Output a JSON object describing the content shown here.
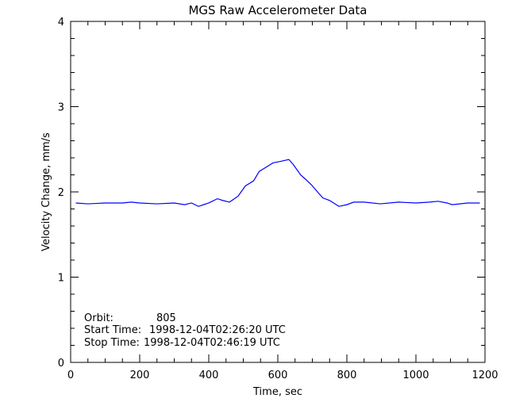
{
  "chart_data": {
    "type": "line",
    "title": "MGS Raw Accelerometer Data",
    "xlabel": "Time, sec",
    "ylabel": "Velocity Change, mm/s",
    "xlim": [
      0,
      1200
    ],
    "ylim": [
      0,
      4
    ],
    "xticks": [
      "0",
      "200",
      "400",
      "600",
      "800",
      "1000",
      "1200"
    ],
    "yticks": [
      "0",
      "1",
      "2",
      "3",
      "4"
    ],
    "grid": false,
    "line_color": "#0000ff",
    "series": [
      {
        "x": [
          15,
          50,
          100,
          150,
          175,
          200,
          250,
          300,
          330,
          350,
          370,
          400,
          425,
          440,
          460,
          485,
          506,
          530,
          546,
          566,
          586,
          610,
          632,
          645,
          666,
          680,
          698,
          715,
          730,
          750,
          777,
          800,
          820,
          850,
          897,
          950,
          1000,
          1040,
          1064,
          1090,
          1105,
          1150,
          1185
        ],
        "y": [
          1.87,
          1.86,
          1.87,
          1.87,
          1.88,
          1.87,
          1.86,
          1.87,
          1.85,
          1.87,
          1.83,
          1.87,
          1.92,
          1.9,
          1.88,
          1.95,
          2.07,
          2.13,
          2.24,
          2.29,
          2.34,
          2.36,
          2.38,
          2.32,
          2.2,
          2.15,
          2.08,
          2.0,
          1.93,
          1.9,
          1.83,
          1.85,
          1.88,
          1.88,
          1.86,
          1.88,
          1.87,
          1.88,
          1.89,
          1.87,
          1.85,
          1.87,
          1.87
        ]
      }
    ],
    "annotations": [
      {
        "label": "Orbit:",
        "value": "805"
      },
      {
        "label": "Start Time:",
        "value": "1998-12-04T02:26:20 UTC"
      },
      {
        "label": "Stop Time:",
        "value": "1998-12-04T02:46:19 UTC"
      }
    ]
  }
}
